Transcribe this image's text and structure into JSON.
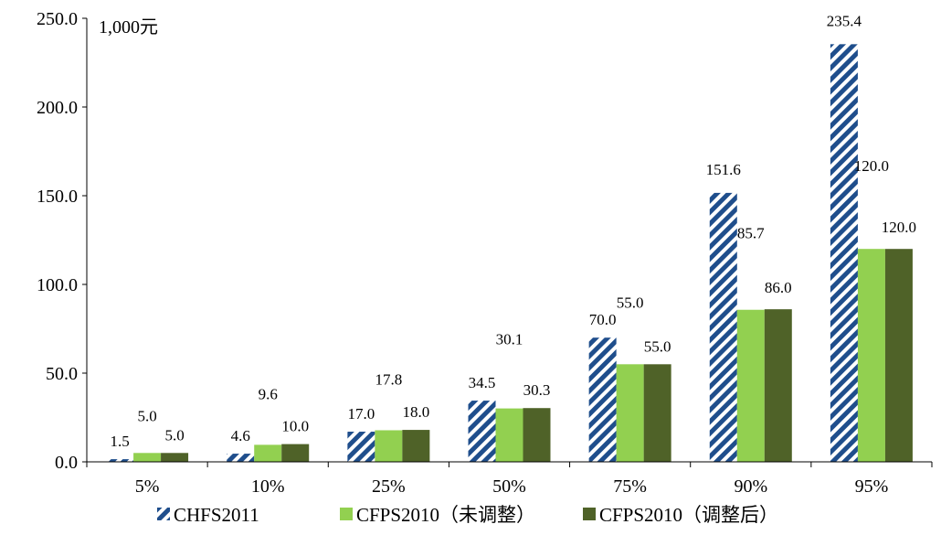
{
  "chart_data": {
    "type": "bar",
    "unit_label": "1,000元",
    "categories": [
      "5%",
      "10%",
      "25%",
      "50%",
      "75%",
      "90%",
      "95%"
    ],
    "series": [
      {
        "name": "CHFS2011",
        "values": [
          1.5,
          4.6,
          17.0,
          34.5,
          70.0,
          151.6,
          235.4
        ],
        "labels": [
          "1.5",
          "4.6",
          "17.0",
          "34.5",
          "70.0",
          "151.6",
          "235.4"
        ],
        "color": "#1f4e8c",
        "pattern": "diagonal-stripes"
      },
      {
        "name": "CFPS2010（未调整）",
        "values": [
          5.0,
          9.6,
          17.8,
          30.1,
          55.0,
          85.7,
          120.0
        ],
        "labels": [
          "5.0",
          "9.6",
          "17.8",
          "30.1",
          "55.0",
          "85.7",
          "120.0"
        ],
        "color": "#92d050"
      },
      {
        "name": "CFPS2010（调整后）",
        "values": [
          5.0,
          10.0,
          18.0,
          30.3,
          55.0,
          86.0,
          120.0
        ],
        "labels": [
          "5.0",
          "10.0",
          "18.0",
          "30.3",
          "55.0",
          "86.0",
          "120.0"
        ],
        "color": "#4f6228"
      }
    ],
    "yticks": [
      "0.0",
      "50.0",
      "100.0",
      "150.0",
      "200.0",
      "250.0"
    ],
    "ylim": [
      0,
      250
    ],
    "grid": false,
    "legend_position": "bottom"
  }
}
